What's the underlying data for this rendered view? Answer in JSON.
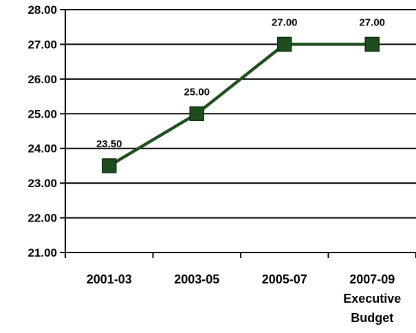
{
  "chart_data": {
    "type": "line",
    "title": "",
    "xlabel": "",
    "ylabel": "",
    "ylim": [
      21,
      28
    ],
    "yticks": [
      "21.00",
      "22.00",
      "23.00",
      "24.00",
      "25.00",
      "26.00",
      "27.00",
      "28.00"
    ],
    "grid": "horizontal",
    "categories": [
      [
        "2001-03"
      ],
      [
        "2003-05"
      ],
      [
        "2005-07"
      ],
      [
        "2007-09",
        "Executive",
        "Budget"
      ]
    ],
    "series": [
      {
        "values": [
          23.5,
          25.0,
          27.0,
          27.0
        ],
        "labels": [
          "23.50",
          "25.00",
          "27.00",
          "27.00"
        ],
        "color": "#1e4d1e",
        "marker": "square"
      }
    ]
  }
}
